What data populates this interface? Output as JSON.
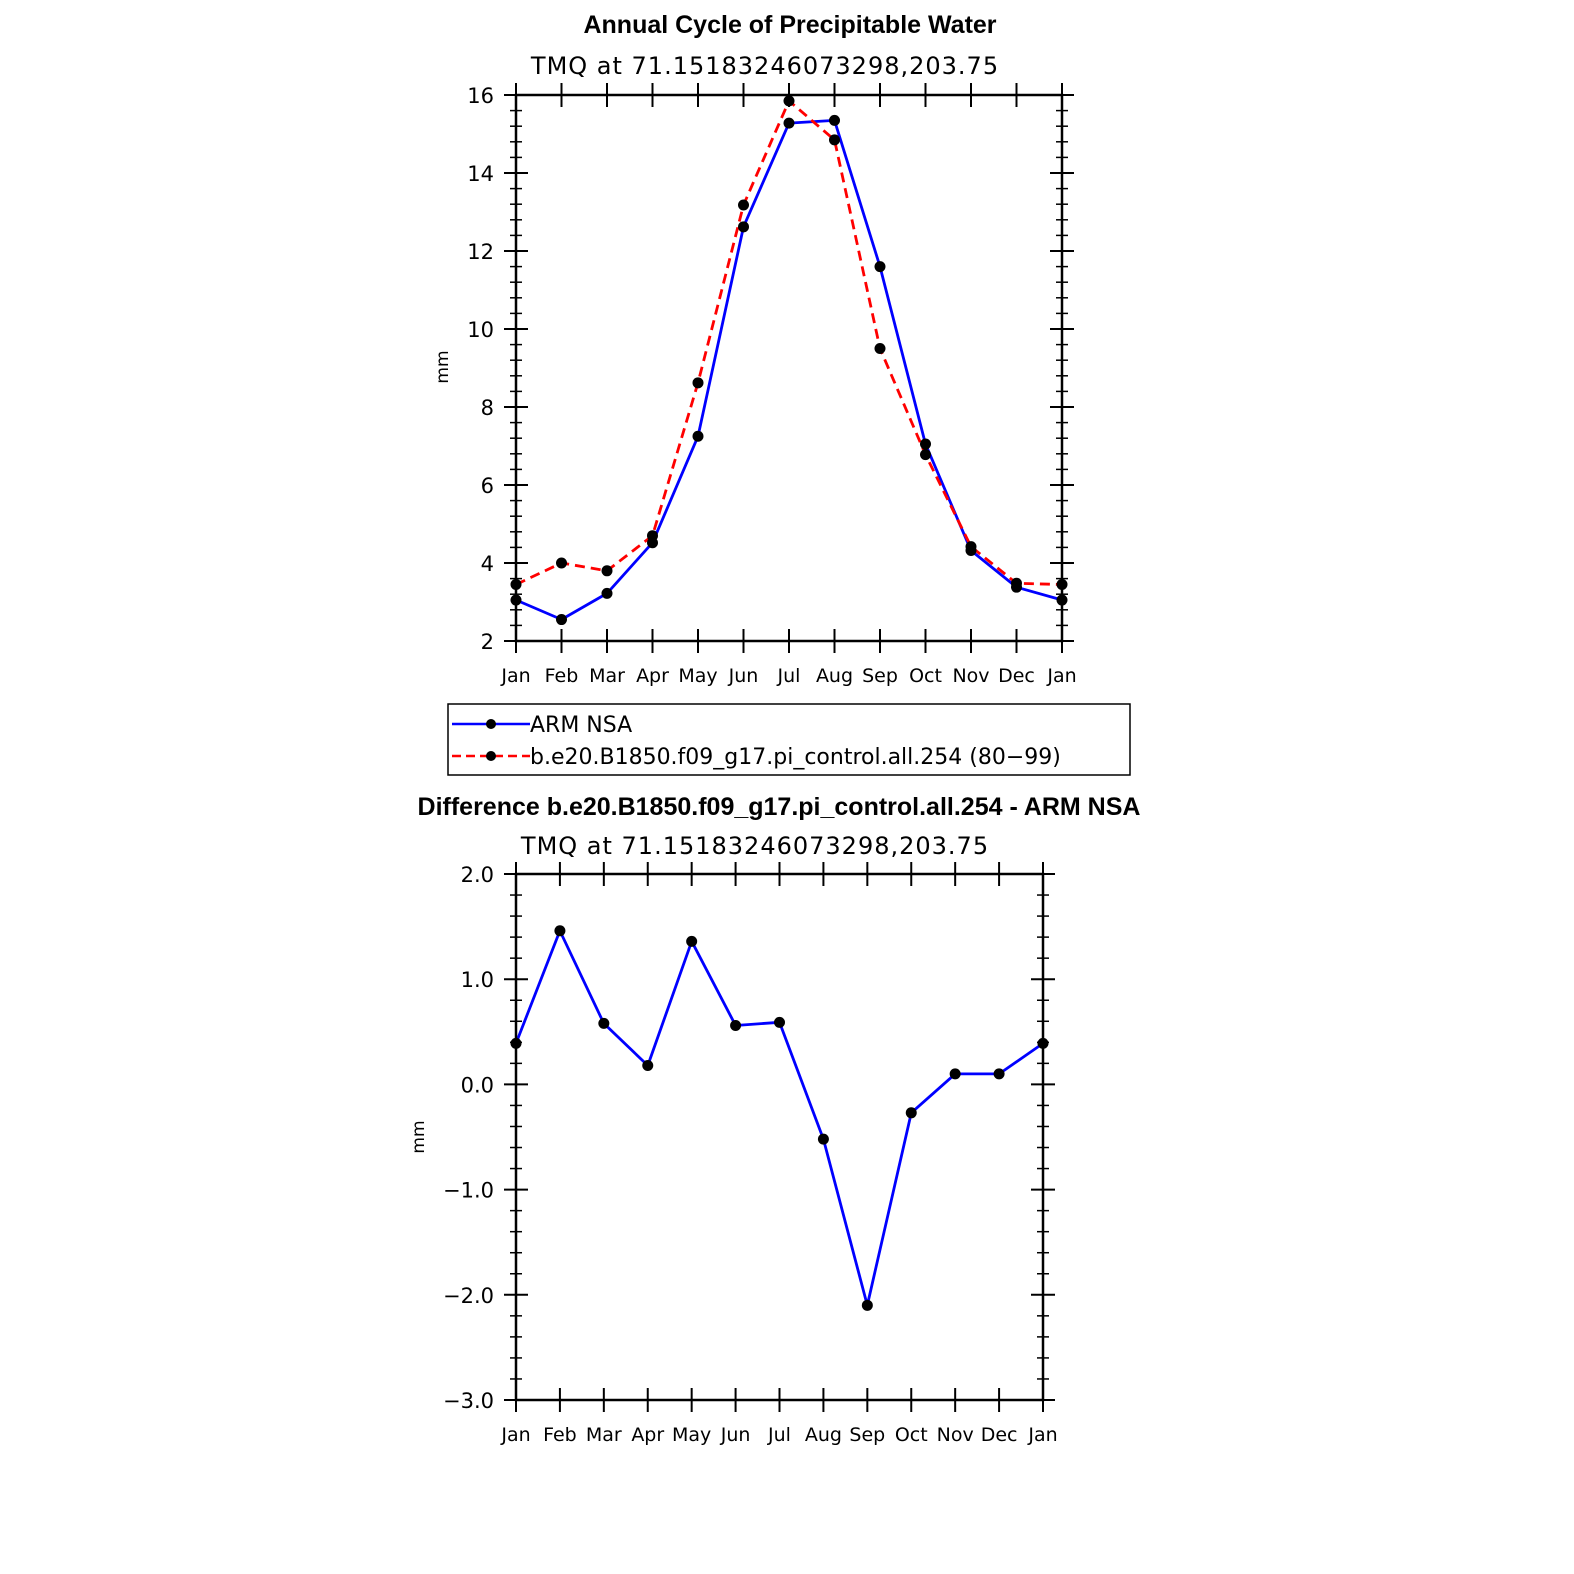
{
  "colors": {
    "model": "#ff0000",
    "obs": "#0000ff",
    "diff": "#0000ff",
    "marker": "#000000"
  },
  "chart_data": [
    {
      "type": "line",
      "title": "Annual Cycle of Precipitable Water",
      "subtitle": "TMQ at 71.15183246073298,203.75",
      "ylabel": "mm",
      "xlabel": "",
      "ylim": [
        2,
        16
      ],
      "yticks": [
        "2",
        "4",
        "6",
        "8",
        "10",
        "12",
        "14",
        "16"
      ],
      "categories": [
        "Jan",
        "Feb",
        "Mar",
        "Apr",
        "May",
        "Jun",
        "Jul",
        "Aug",
        "Sep",
        "Oct",
        "Nov",
        "Dec",
        "Jan"
      ],
      "grid": false,
      "legend": "below",
      "series": [
        {
          "name": "ARM NSA",
          "style": "solid",
          "values": [
            3.05,
            2.55,
            3.22,
            4.52,
            7.25,
            12.62,
            15.28,
            15.35,
            11.6,
            7.05,
            4.32,
            3.38,
            3.05
          ]
        },
        {
          "name": "b.e20.B1850.f09_g17.pi_control.all.254 (80−99)",
          "style": "dashed",
          "values": [
            3.45,
            4.0,
            3.8,
            4.7,
            8.62,
            13.18,
            15.85,
            14.85,
            9.5,
            6.78,
            4.42,
            3.48,
            3.45
          ]
        }
      ]
    },
    {
      "type": "line",
      "title": "Difference b.e20.B1850.f09_g17.pi_control.all.254 - ARM NSA",
      "subtitle": "TMQ at 71.15183246073298,203.75",
      "ylabel": "mm",
      "xlabel": "",
      "ylim": [
        -3.0,
        2.0
      ],
      "yticks": [
        "−3.0",
        "−2.0",
        "−1.0",
        "0.0",
        "1.0",
        "2.0"
      ],
      "categories": [
        "Jan",
        "Feb",
        "Mar",
        "Apr",
        "May",
        "Jun",
        "Jul",
        "Aug",
        "Sep",
        "Oct",
        "Nov",
        "Dec",
        "Jan"
      ],
      "grid": false,
      "series": [
        {
          "style": "solid",
          "values": [
            0.39,
            1.46,
            0.58,
            0.18,
            1.36,
            0.56,
            0.59,
            -0.52,
            -2.1,
            -0.27,
            0.1,
            0.1,
            0.39
          ]
        }
      ]
    }
  ]
}
